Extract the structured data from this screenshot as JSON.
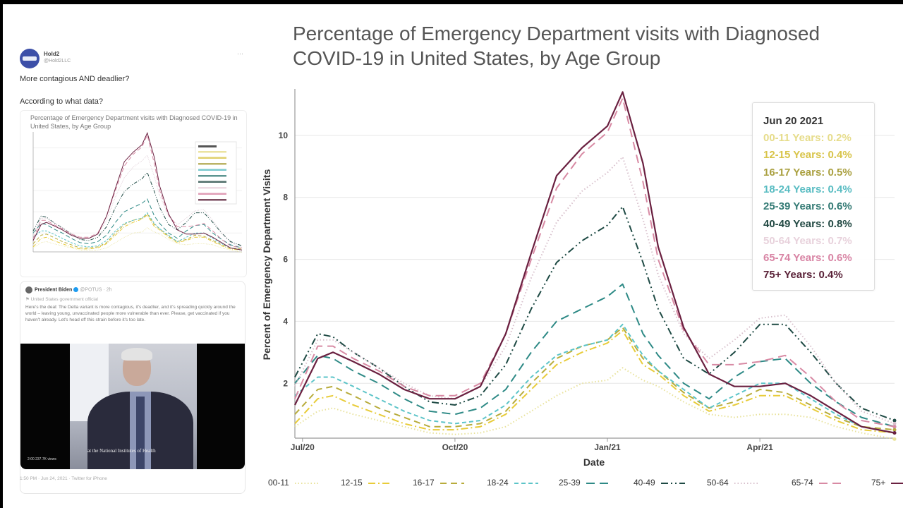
{
  "tweet": {
    "author_name": "Hold2",
    "author_handle": "@Hold2LLC",
    "more_icon": "ellipsis-icon",
    "text_line1": "More contagious AND deadlier?",
    "text_line2": "According to what data?",
    "embedded_chart_title": "Percentage of Emergency Department visits with Diagnosed COVID-19 in United States, by Age Group",
    "quoted": {
      "author_name": "President Biden",
      "author_handle": "@POTUS · 2h",
      "label": "⚑ United States government official",
      "body": "Here's the deal: The Delta variant is more contagious, it's deadlier, and it's spreading quickly around the world – leaving young, unvaccinated people more vulnerable than ever. Please, get vaccinated if you haven't already. Let's head off this strain before it's too late.",
      "video_caption": "at the National Institutes of Health",
      "video_views": "2:00   237.7K views"
    },
    "footer": "1:50 PM · Jun 24, 2021 · Twitter for iPhone"
  },
  "chart_data": {
    "type": "line",
    "title": "Percentage of Emergency Department visits with Diagnosed COVID-19 in United States, by Age Group",
    "xlabel": "Date",
    "ylabel": "Percent of Emergency Department Visits",
    "x_unit": "months since Jul 1 2020",
    "x_ticks": [
      {
        "x": 0,
        "label": "Jul/20"
      },
      {
        "x": 3,
        "label": "Oct/20"
      },
      {
        "x": 6,
        "label": "Jan/21"
      },
      {
        "x": 9,
        "label": "Apr/21"
      }
    ],
    "xlim": [
      -0.15,
      11.65
    ],
    "y_ticks": [
      2,
      4,
      6,
      8,
      10
    ],
    "ylim": [
      0.23,
      11.5
    ],
    "grid": "horizontal",
    "legend_position": "bottom",
    "x": [
      -0.15,
      0.3,
      0.6,
      1.0,
      1.5,
      2.0,
      2.5,
      3.0,
      3.5,
      4.0,
      4.5,
      5.0,
      5.5,
      6.0,
      6.3,
      6.7,
      7.0,
      7.5,
      8.0,
      8.5,
      9.0,
      9.5,
      10.0,
      10.5,
      11.0,
      11.65
    ],
    "series": [
      {
        "name": "00-11",
        "color": "#e8e29a",
        "dash": "dot",
        "values": [
          0.6,
          1.1,
          1.2,
          1.0,
          0.8,
          0.6,
          0.4,
          0.35,
          0.4,
          0.6,
          1.1,
          1.6,
          2.0,
          2.1,
          2.5,
          2.1,
          1.9,
          1.4,
          1.0,
          0.9,
          1.0,
          1.0,
          0.9,
          0.6,
          0.4,
          0.2
        ]
      },
      {
        "name": "12-15",
        "color": "#e8cc3a",
        "dash": "dashdot",
        "values": [
          0.7,
          1.5,
          1.6,
          1.3,
          1.0,
          0.7,
          0.5,
          0.5,
          0.6,
          1.0,
          1.8,
          2.6,
          3.0,
          3.3,
          3.7,
          2.6,
          2.3,
          1.6,
          1.1,
          1.3,
          1.6,
          1.6,
          1.2,
          0.8,
          0.5,
          0.4
        ]
      },
      {
        "name": "16-17",
        "color": "#b8ac3c",
        "dash": "dash",
        "values": [
          1.0,
          1.8,
          1.9,
          1.6,
          1.2,
          0.9,
          0.6,
          0.6,
          0.7,
          1.1,
          2.0,
          2.8,
          3.2,
          3.4,
          3.8,
          2.8,
          2.4,
          1.7,
          1.2,
          1.4,
          1.8,
          1.7,
          1.3,
          0.9,
          0.6,
          0.5
        ]
      },
      {
        "name": "18-24",
        "color": "#5cc4c8",
        "dash": "dash3",
        "values": [
          1.6,
          2.2,
          2.2,
          1.9,
          1.5,
          1.1,
          0.8,
          0.7,
          0.8,
          1.3,
          2.2,
          2.9,
          3.2,
          3.4,
          3.9,
          2.9,
          2.4,
          1.8,
          1.2,
          1.6,
          2.0,
          2.0,
          1.5,
          1.0,
          0.6,
          0.4
        ]
      },
      {
        "name": "25-39",
        "color": "#2e8a86",
        "dash": "longdash",
        "values": [
          2.0,
          2.9,
          2.8,
          2.4,
          2.0,
          1.5,
          1.1,
          1.0,
          1.2,
          1.8,
          3.0,
          4.0,
          4.4,
          4.8,
          5.2,
          3.6,
          2.9,
          2.0,
          1.5,
          2.2,
          2.7,
          2.8,
          2.0,
          1.4,
          0.9,
          0.6
        ]
      },
      {
        "name": "40-49",
        "color": "#1e4a44",
        "dash": "dashdotdot",
        "values": [
          2.2,
          3.6,
          3.5,
          3.0,
          2.5,
          1.9,
          1.4,
          1.3,
          1.6,
          2.6,
          4.4,
          5.9,
          6.6,
          7.1,
          7.7,
          5.9,
          4.4,
          2.8,
          2.3,
          3.0,
          3.9,
          3.9,
          3.0,
          2.0,
          1.2,
          0.8
        ]
      },
      {
        "name": "50-64",
        "color": "#d8c0cc",
        "dash": "dot",
        "values": [
          1.9,
          3.4,
          3.4,
          3.0,
          2.5,
          2.0,
          1.6,
          1.5,
          1.9,
          3.2,
          5.4,
          7.2,
          8.2,
          8.8,
          9.3,
          7.3,
          5.5,
          3.6,
          2.8,
          3.4,
          4.1,
          4.2,
          3.2,
          2.0,
          1.1,
          0.7
        ]
      },
      {
        "name": "65-74",
        "color": "#d88aa4",
        "dash": "longdash",
        "values": [
          1.5,
          3.2,
          3.2,
          2.8,
          2.4,
          1.9,
          1.6,
          1.6,
          2.0,
          3.6,
          6.0,
          8.3,
          9.4,
          10.1,
          11.2,
          8.5,
          6.0,
          3.7,
          2.6,
          2.6,
          2.7,
          2.9,
          2.2,
          1.4,
          0.8,
          0.6
        ]
      },
      {
        "name": "75+",
        "color": "#6a2040",
        "dash": "solid",
        "values": [
          1.3,
          2.8,
          3.0,
          2.7,
          2.3,
          1.8,
          1.5,
          1.5,
          1.9,
          3.6,
          6.2,
          8.7,
          9.6,
          10.3,
          11.4,
          9.1,
          6.4,
          3.8,
          2.3,
          1.9,
          1.9,
          2.0,
          1.6,
          1.1,
          0.6,
          0.4
        ]
      }
    ],
    "tooltip": {
      "date": "Jun 20 2021",
      "rows": [
        {
          "label": "00-11 Years: 0.2%",
          "color": "#e6dc8a"
        },
        {
          "label": "12-15 Years: 0.4%",
          "color": "#d8c44a"
        },
        {
          "label": "16-17 Years: 0.5%",
          "color": "#aaa040"
        },
        {
          "label": "18-24 Years: 0.4%",
          "color": "#58bcc2"
        },
        {
          "label": "25-39 Years: 0.6%",
          "color": "#337a74"
        },
        {
          "label": "40-49 Years: 0.8%",
          "color": "#234a44"
        },
        {
          "label": "50-64 Years: 0.7%",
          "color": "#e8d2dc"
        },
        {
          "label": "65-74 Years: 0.6%",
          "color": "#d884a4"
        },
        {
          "label": "75+ Years: 0.4%",
          "color": "#5a2238"
        }
      ]
    }
  }
}
